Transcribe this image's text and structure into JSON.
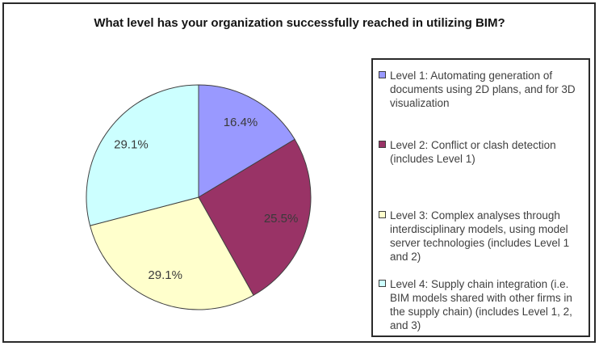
{
  "chart_data": {
    "type": "pie",
    "title": "What level has your organization successfully reached in utilizing BIM?",
    "direction": "clockwise",
    "start_angle_deg": 0,
    "legend_position": "right",
    "slices": [
      {
        "name": "level-1",
        "label": "Level 1: Automating generation of documents using 2D plans, and for 3D visualization",
        "value": 16.4,
        "percent_label": "16.4%",
        "color": "#9999FF"
      },
      {
        "name": "level-2",
        "label": "Level 2: Conflict or clash detection (includes Level 1)",
        "value": 25.5,
        "percent_label": "25.5%",
        "color": "#993366"
      },
      {
        "name": "level-3",
        "label": "Level 3: Complex analyses through interdisciplinary models, using model server technologies (includes Level 1 and 2)",
        "value": 29.1,
        "percent_label": "29.1%",
        "color": "#FFFFCC"
      },
      {
        "name": "level-4",
        "label": "Level 4: Supply chain integration (i.e. BIM models shared with other firms in the supply chain) (includes Level 1, 2, and 3)",
        "value": 29.1,
        "percent_label": "29.1%",
        "color": "#CCFFFF"
      }
    ],
    "colors": {
      "slice_border": "#404040",
      "label_text": "#3a3a3a",
      "legend_text": "#3f3f3f",
      "frame_border": "#2a2a2a"
    }
  }
}
